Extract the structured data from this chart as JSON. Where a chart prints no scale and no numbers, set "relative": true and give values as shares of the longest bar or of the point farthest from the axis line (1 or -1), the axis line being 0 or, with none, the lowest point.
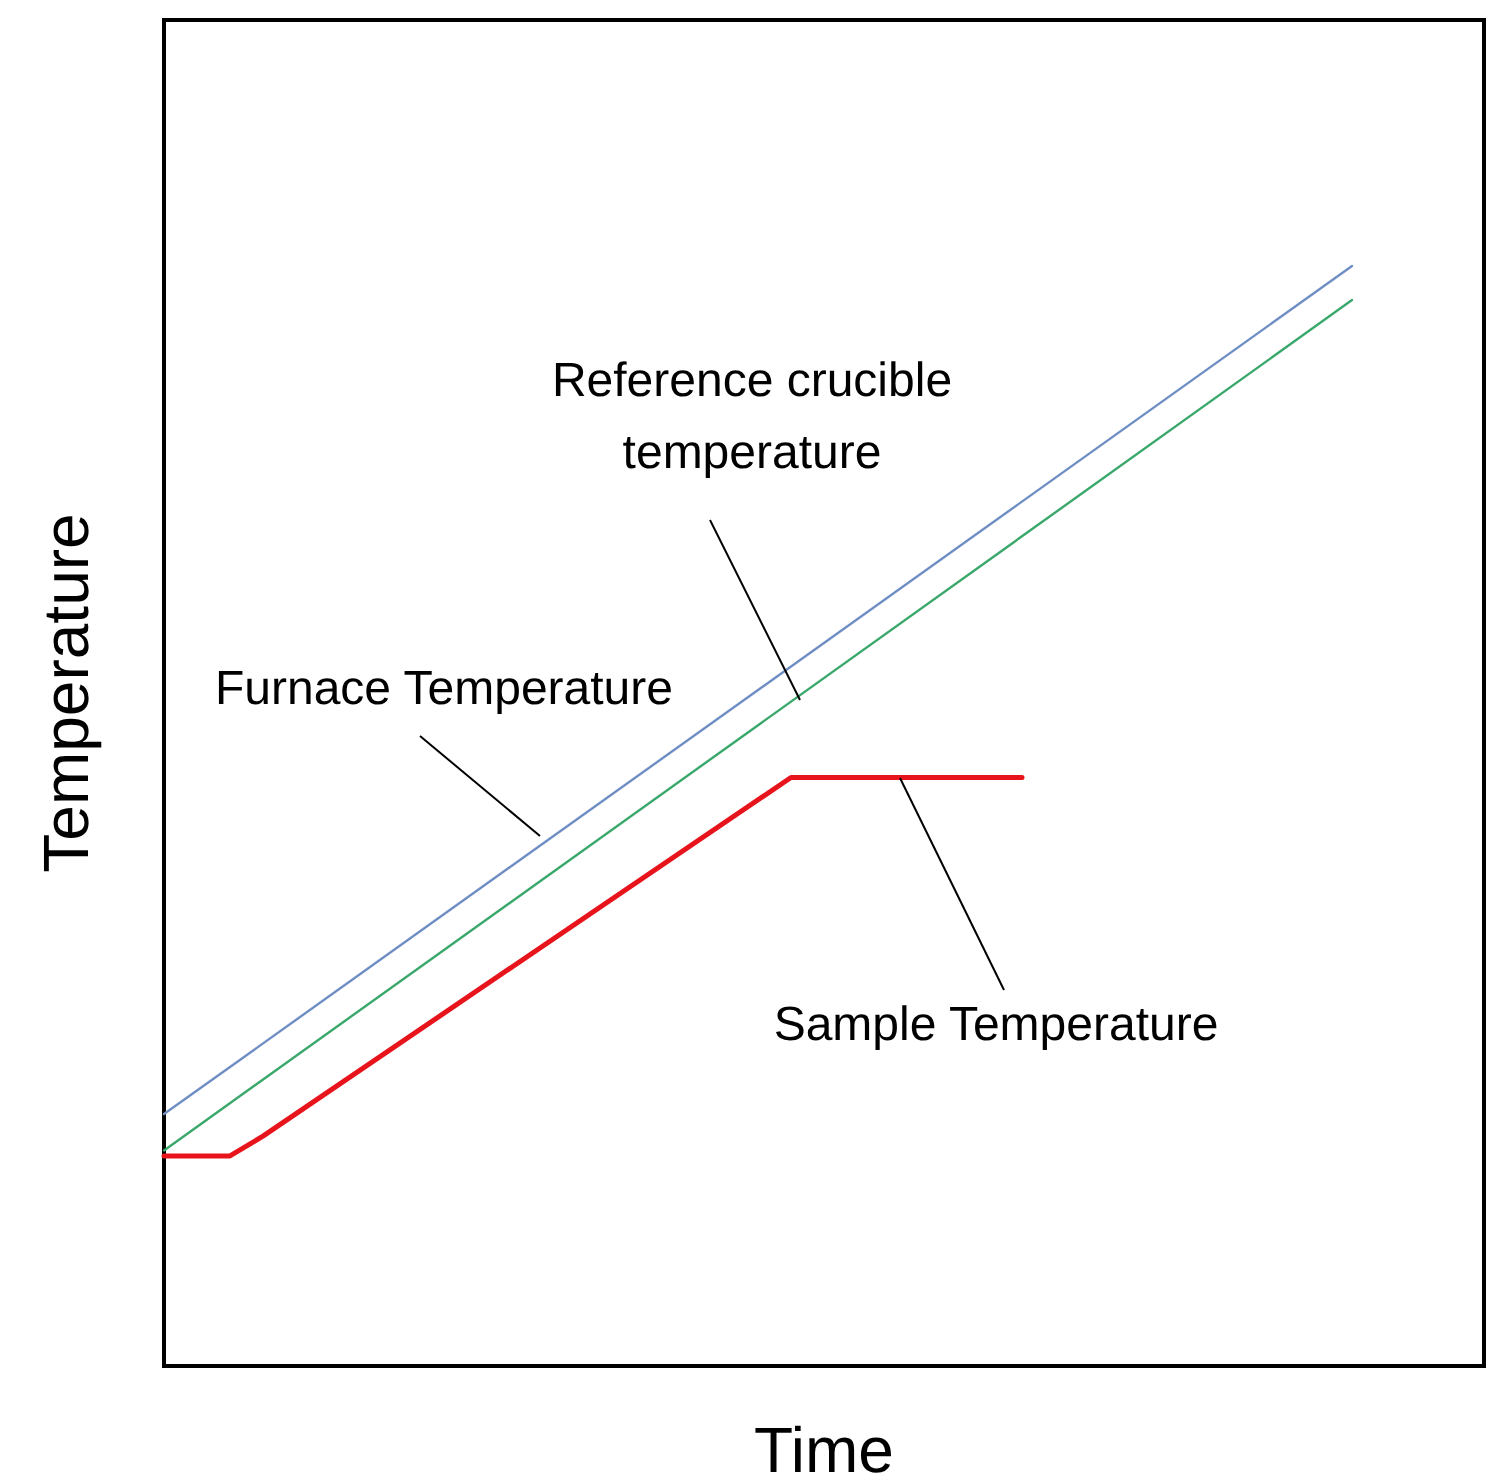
{
  "chart_data": {
    "type": "line",
    "relative": true,
    "xlabel": "Time",
    "ylabel": "Temperature",
    "marker": "none",
    "line_style": "solid",
    "categories": [
      null,
      null,
      null,
      null,
      null,
      null,
      null,
      null,
      null,
      null,
      null,
      null,
      null,
      null,
      null,
      null,
      null,
      null,
      null,
      null,
      null,
      null,
      null,
      null,
      null,
      null,
      null,
      null,
      null,
      null,
      null,
      null,
      null,
      null,
      null,
      null,
      null,
      null,
      null,
      null,
      null
    ],
    "series": [
      {
        "color": "#6f8ec4",
        "values": [
          0.229,
          null,
          null,
          null,
          null,
          null,
          null,
          null,
          null,
          null,
          null,
          null,
          null,
          null,
          null,
          null,
          null,
          null,
          null,
          null,
          null,
          null,
          null,
          null,
          null,
          null,
          null,
          null,
          null,
          null,
          null,
          null,
          null,
          null,
          null,
          null,
          1,
          null,
          null,
          null,
          null
        ]
      },
      {
        "color": "#3aa86b",
        "values": [
          0.196,
          null,
          null,
          null,
          null,
          null,
          null,
          null,
          null,
          null,
          null,
          null,
          null,
          null,
          null,
          null,
          null,
          null,
          null,
          null,
          null,
          null,
          null,
          null,
          null,
          null,
          null,
          null,
          null,
          null,
          null,
          null,
          null,
          null,
          null,
          null,
          0.969,
          null,
          null,
          null,
          null
        ]
      },
      {
        "color": "#e8141c",
        "values": [
          0.191,
          null,
          0.191,
          0.209,
          null,
          null,
          null,
          null,
          null,
          null,
          null,
          null,
          null,
          null,
          null,
          null,
          null,
          null,
          null,
          0.535,
          null,
          null,
          null,
          null,
          null,
          null,
          0.535,
          null,
          null,
          null,
          null,
          null,
          null,
          null,
          null,
          null,
          null,
          null,
          null,
          null,
          null
        ]
      }
    ],
    "annotations": [
      "Reference crucible temperature",
      "Furnace Temperature",
      "Sample Temperature"
    ]
  }
}
